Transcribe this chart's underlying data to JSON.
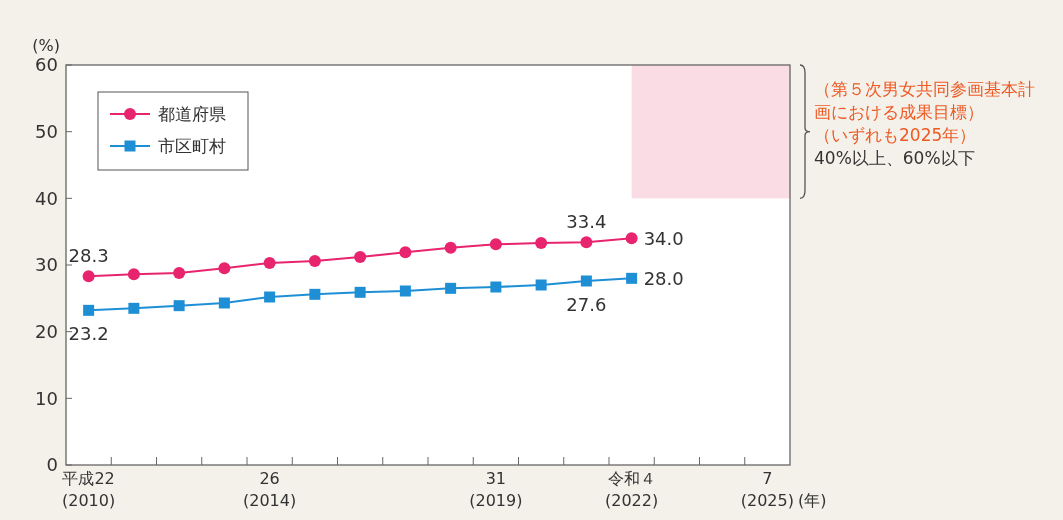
{
  "chart_data": {
    "type": "line",
    "ylabel": "(%)",
    "xlabel": "(年)",
    "categories": [
      "平成22\n(2010)",
      null,
      null,
      null,
      "26\n(2014)",
      null,
      null,
      null,
      null,
      "31\n(2019)",
      null,
      null,
      "令和４\n(2022)",
      null,
      null,
      "7\n(2025)"
    ],
    "ylim": [
      0,
      60
    ],
    "yticks": [
      0,
      10,
      20,
      30,
      40,
      50,
      60
    ],
    "series": [
      {
        "name": "都道府県",
        "color": "#e8246e",
        "marker": "circle",
        "values": [
          28.3,
          28.6,
          28.8,
          29.5,
          30.3,
          30.6,
          31.2,
          31.9,
          32.6,
          33.1,
          33.3,
          33.4,
          34.0,
          null,
          null,
          null
        ],
        "value_labels": [
          "28.3",
          null,
          null,
          null,
          null,
          null,
          null,
          null,
          null,
          null,
          null,
          "33.4",
          "34.0",
          null,
          null,
          null
        ]
      },
      {
        "name": "市区町村",
        "color": "#1e8fd5",
        "marker": "square",
        "values": [
          23.2,
          23.5,
          23.9,
          24.3,
          25.2,
          25.6,
          25.9,
          26.1,
          26.5,
          26.7,
          27.0,
          27.6,
          28.0,
          null,
          null,
          null
        ],
        "value_labels": [
          "23.2",
          null,
          null,
          null,
          null,
          null,
          null,
          null,
          null,
          null,
          null,
          "27.6",
          "28.0",
          null,
          null,
          null
        ]
      }
    ],
    "bands": [
      {
        "axis": "y",
        "from": 40,
        "to": 60,
        "color": "#f9dce4"
      }
    ],
    "annotations": [
      "（第５次男女共同参画基本計画における成果目標）",
      "（いずれも2025年）",
      "40%以上、60%以下"
    ],
    "legend": "top left",
    "grid": false
  }
}
